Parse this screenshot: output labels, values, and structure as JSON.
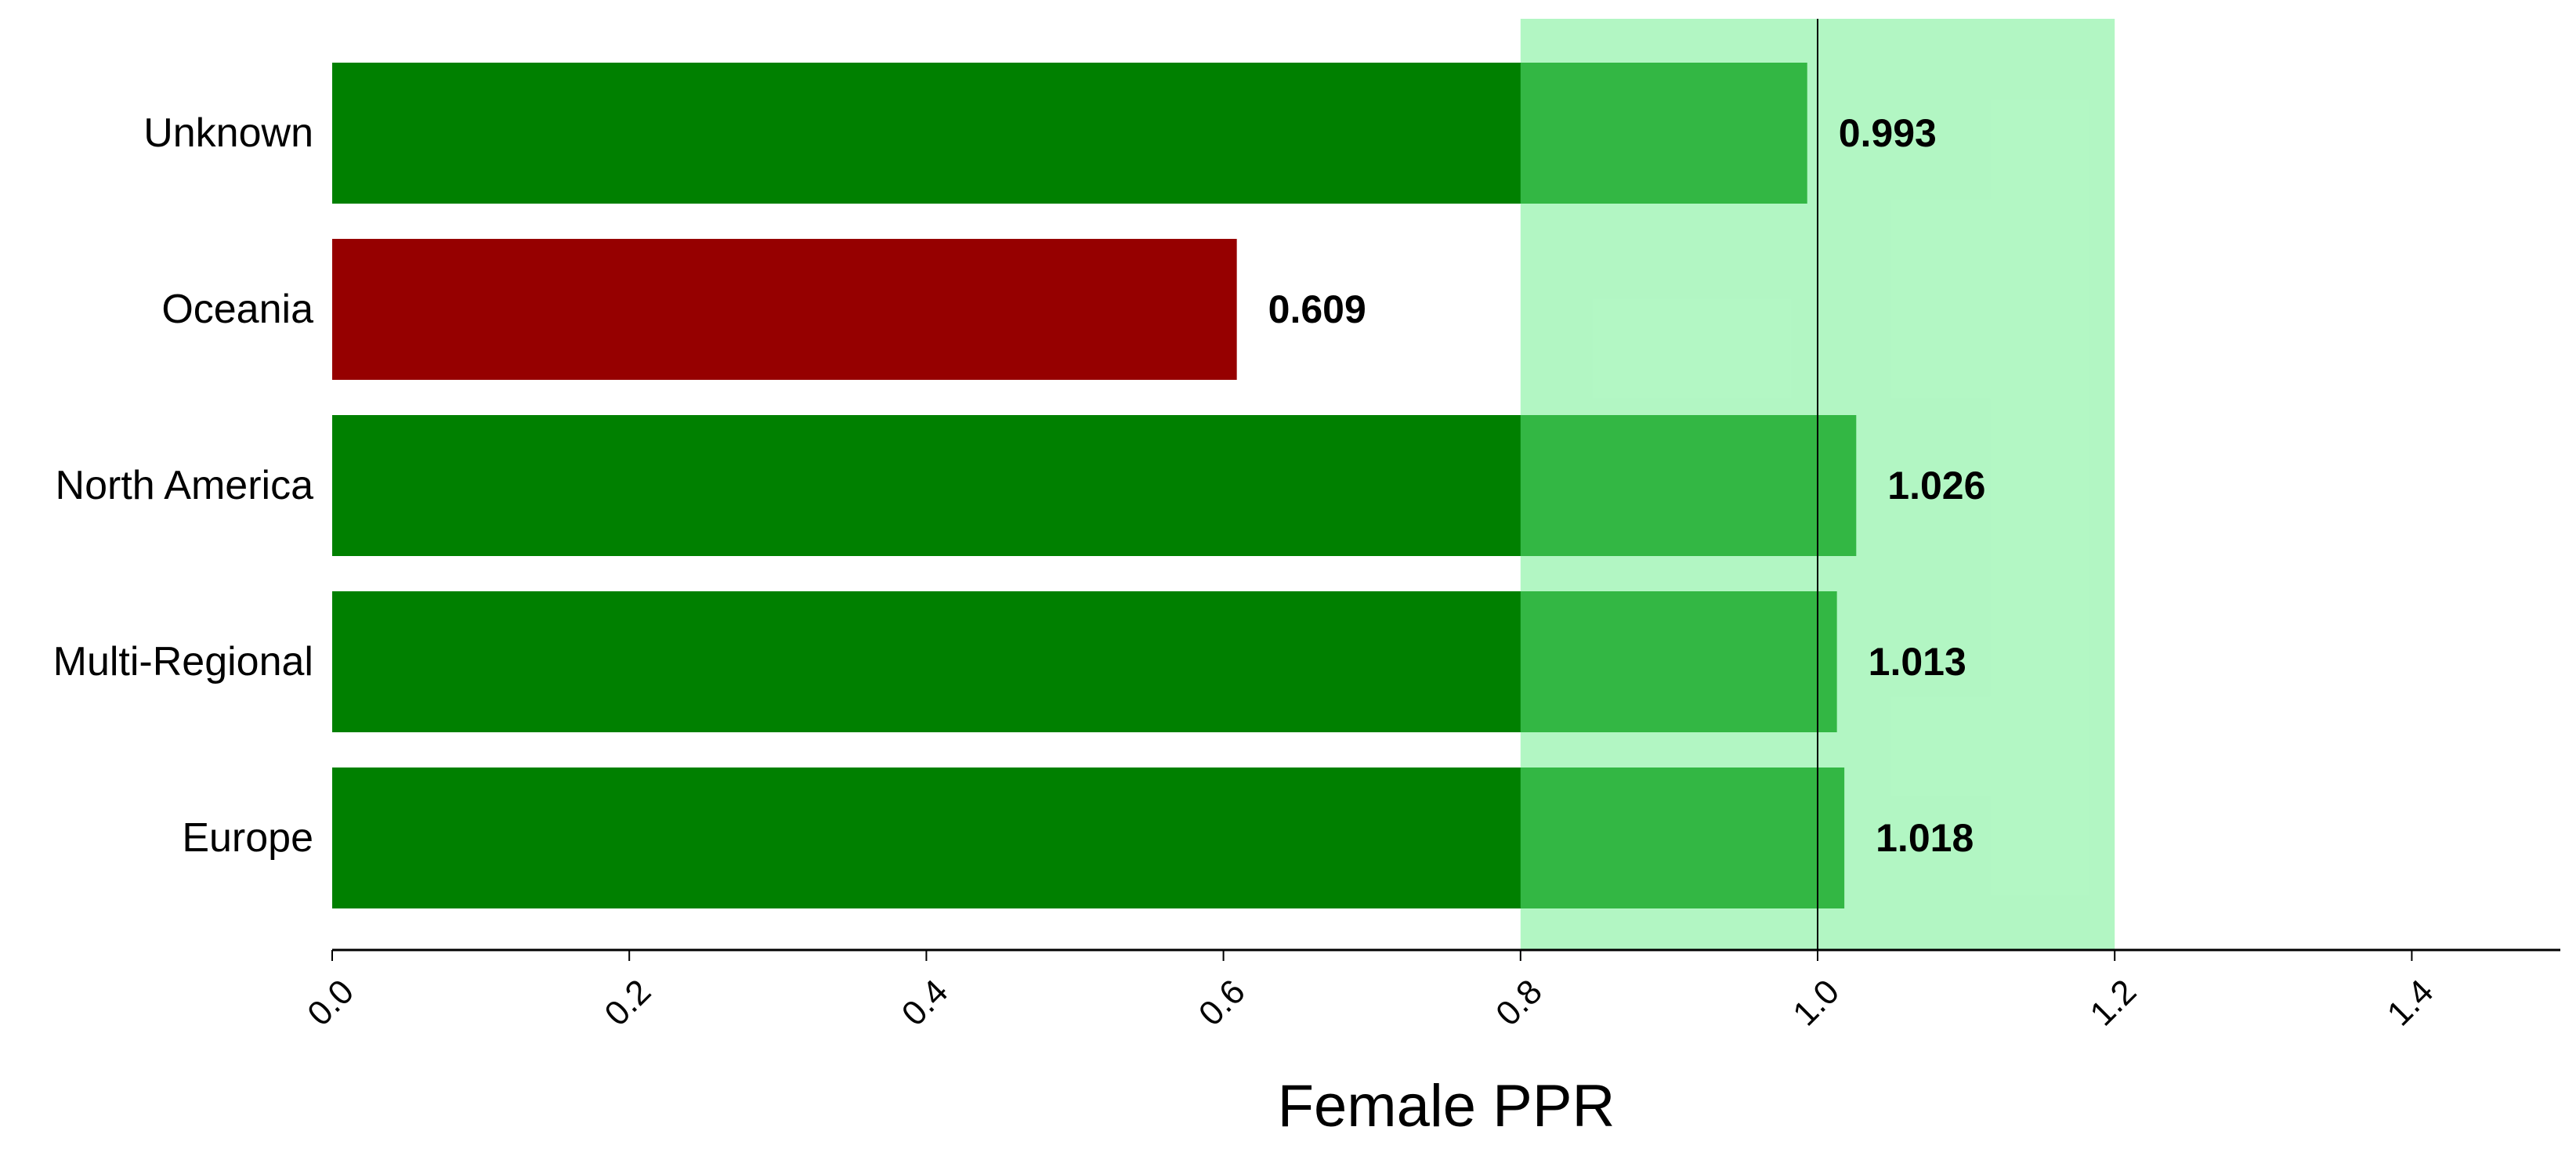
{
  "chart_data": {
    "type": "bar",
    "orientation": "horizontal",
    "categories": [
      "Unknown",
      "Oceania",
      "North America",
      "Multi-Regional",
      "Europe"
    ],
    "values": [
      0.993,
      0.609,
      1.026,
      1.013,
      1.018
    ],
    "value_labels": [
      "0.993",
      "0.609",
      "1.026",
      "1.013",
      "1.018"
    ],
    "bar_colors": [
      "#008000",
      "#960000",
      "#008000",
      "#008000",
      "#008000"
    ],
    "title": "",
    "xlabel": "Female PPR",
    "ylabel": "",
    "xlim": [
      0.0,
      1.5
    ],
    "xticks": [
      0.0,
      0.2,
      0.4,
      0.6,
      0.8,
      1.0,
      1.2,
      1.4
    ],
    "xtick_labels": [
      "0.0",
      "0.2",
      "0.4",
      "0.6",
      "0.8",
      "1.0",
      "1.2",
      "1.4"
    ],
    "fairness_band": {
      "from": 0.8,
      "to": 1.2,
      "color": "#66ee88"
    },
    "reference_line": {
      "x": 1.0,
      "color": "#000000"
    },
    "grid": false,
    "legend": "none",
    "colors": {
      "pass": "#008000",
      "fail": "#960000",
      "band": "#66ee88",
      "axis": "#000000",
      "text": "#000000"
    }
  }
}
